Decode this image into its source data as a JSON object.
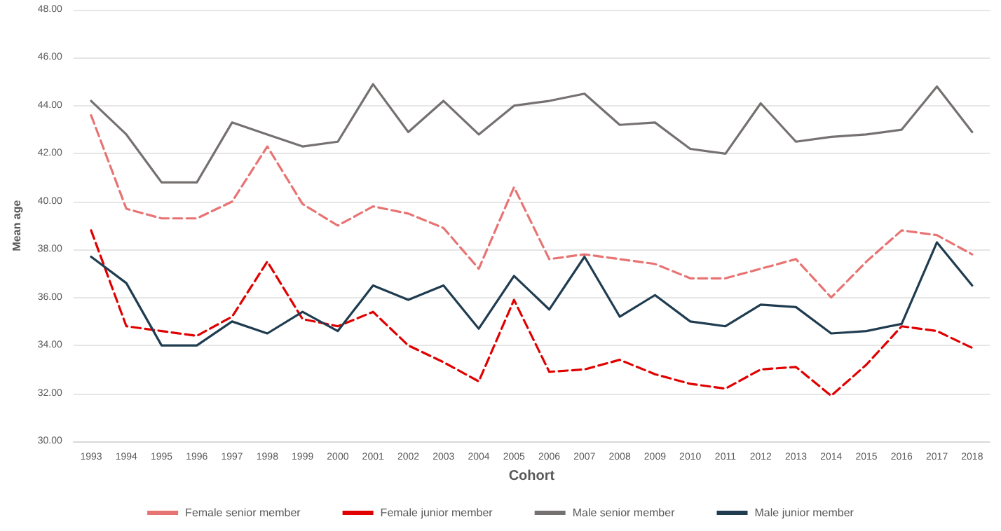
{
  "chart_data": {
    "type": "line",
    "xlabel": "Cohort",
    "ylabel": "Mean age",
    "categories": [
      "1993",
      "1994",
      "1995",
      "1996",
      "1997",
      "1998",
      "1999",
      "2000",
      "2001",
      "2002",
      "2003",
      "2004",
      "2005",
      "2006",
      "2007",
      "2008",
      "2009",
      "2010",
      "2011",
      "2012",
      "2013",
      "2014",
      "2015",
      "2016",
      "2017",
      "2018"
    ],
    "series": [
      {
        "name": "Female senior member",
        "color": "#e87373",
        "line_style": "dashed",
        "values": [
          43.6,
          39.7,
          39.3,
          39.3,
          40.0,
          42.3,
          39.9,
          39.0,
          39.8,
          39.5,
          38.9,
          37.2,
          40.6,
          37.6,
          37.8,
          37.6,
          37.4,
          36.8,
          36.8,
          37.2,
          37.6,
          36.0,
          37.5,
          38.8,
          38.6,
          37.8
        ]
      },
      {
        "name": "Female junior member",
        "color": "#e00000",
        "line_style": "dashed",
        "values": [
          38.8,
          34.8,
          34.6,
          34.4,
          35.2,
          37.5,
          35.1,
          34.8,
          35.4,
          34.0,
          33.3,
          32.5,
          35.9,
          32.9,
          33.0,
          33.4,
          32.8,
          32.4,
          32.2,
          33.0,
          33.1,
          31.9,
          33.2,
          34.8,
          34.6,
          33.9
        ]
      },
      {
        "name": "Male senior member",
        "color": "#767171",
        "line_style": "solid",
        "values": [
          44.2,
          42.8,
          40.8,
          40.8,
          43.3,
          42.8,
          42.3,
          42.5,
          44.9,
          42.9,
          44.2,
          42.8,
          44.0,
          44.2,
          44.5,
          43.2,
          43.3,
          42.2,
          42.0,
          44.1,
          42.5,
          42.7,
          42.8,
          43.0,
          44.8,
          42.9
        ]
      },
      {
        "name": "Male junior member",
        "color": "#1f3c50",
        "line_style": "solid",
        "values": [
          37.7,
          36.6,
          34.0,
          34.0,
          35.0,
          34.5,
          35.4,
          34.6,
          36.5,
          35.9,
          36.5,
          34.7,
          36.9,
          35.5,
          37.7,
          35.2,
          36.1,
          35.0,
          34.8,
          35.7,
          35.6,
          34.5,
          34.6,
          34.9,
          38.3,
          36.5
        ]
      }
    ],
    "ylim": [
      30,
      48
    ],
    "yticks": [
      {
        "value": 30,
        "label": "30.00"
      },
      {
        "value": 32,
        "label": "32.00"
      },
      {
        "value": 34,
        "label": "34.00"
      },
      {
        "value": 36,
        "label": "36.00"
      },
      {
        "value": 38,
        "label": "38.00"
      },
      {
        "value": 40,
        "label": "40.00"
      },
      {
        "value": 42,
        "label": "42.00"
      },
      {
        "value": 44,
        "label": "44.00"
      },
      {
        "value": 46,
        "label": "46.00"
      },
      {
        "value": 48,
        "label": "48.00"
      }
    ],
    "grid": "y",
    "legend": "bottom",
    "marker": "none"
  }
}
